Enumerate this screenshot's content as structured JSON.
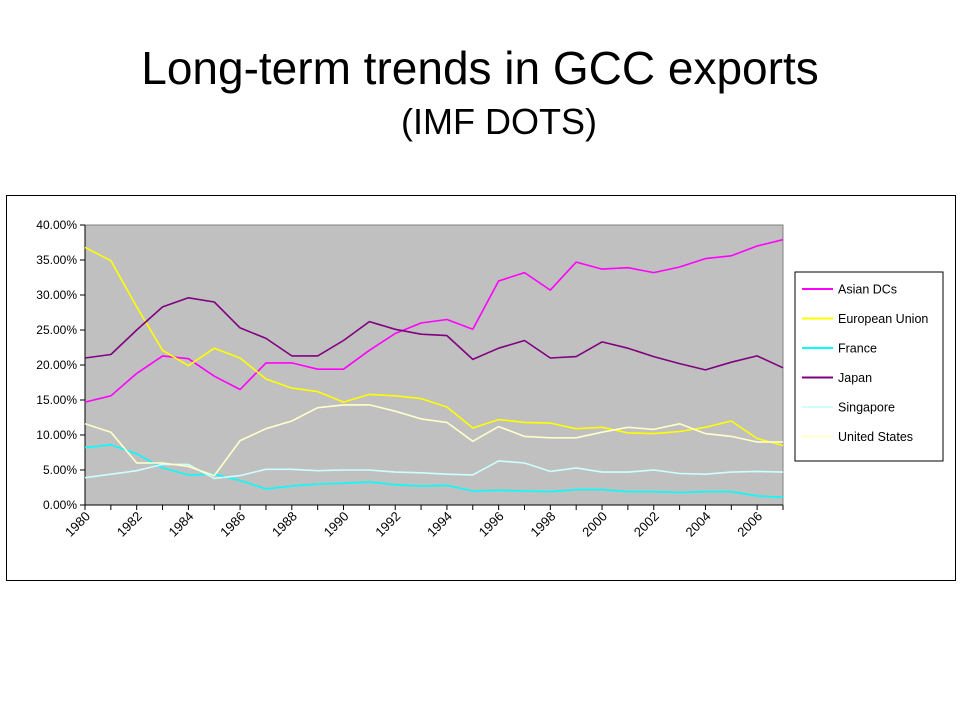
{
  "slide": {
    "title": "Long-term trends in GCC exports",
    "subtitle": "(IMF DOTS)"
  },
  "chart_data": {
    "type": "line",
    "x": [
      1980,
      1981,
      1982,
      1983,
      1984,
      1985,
      1986,
      1987,
      1988,
      1989,
      1990,
      1991,
      1992,
      1993,
      1994,
      1995,
      1996,
      1997,
      1998,
      1999,
      2000,
      2001,
      2002,
      2003,
      2004,
      2005,
      2006,
      2007
    ],
    "x_tick_labels": [
      "1980",
      "1982",
      "1984",
      "1986",
      "1988",
      "1990",
      "1992",
      "1994",
      "1996",
      "1998",
      "2000",
      "2002",
      "2004",
      "2006"
    ],
    "y_tick_labels": [
      "0.00%",
      "5.00%",
      "10.00%",
      "15.00%",
      "20.00%",
      "25.00%",
      "30.00%",
      "35.00%",
      "40.00%"
    ],
    "ylim": [
      0,
      40
    ],
    "ylabel": "",
    "xlabel": "",
    "grid": false,
    "plot_background": "#c0c0c0",
    "legend_position": "right",
    "series": [
      {
        "name": "Asian DCs",
        "color": "#ff00ff",
        "values": [
          14.7,
          15.6,
          18.8,
          21.3,
          20.9,
          18.4,
          16.5,
          20.3,
          20.3,
          19.4,
          19.4,
          22.1,
          24.5,
          26.0,
          26.5,
          25.1,
          32.0,
          33.2,
          30.7,
          34.7,
          33.7,
          33.9,
          33.2,
          34.0,
          35.2,
          35.6,
          37.0,
          37.9
        ]
      },
      {
        "name": "European Union",
        "color": "#ffff00",
        "values": [
          36.8,
          34.9,
          28.3,
          22.1,
          19.9,
          22.4,
          21.0,
          18.0,
          16.7,
          16.2,
          14.7,
          15.8,
          15.6,
          15.2,
          14.0,
          11.0,
          12.2,
          11.8,
          11.7,
          10.9,
          11.1,
          10.3,
          10.2,
          10.5,
          11.1,
          12.0,
          9.5,
          8.5
        ]
      },
      {
        "name": "France",
        "color": "#00ffff",
        "values": [
          8.2,
          8.6,
          7.3,
          5.3,
          4.3,
          4.4,
          3.5,
          2.3,
          2.7,
          3.0,
          3.1,
          3.3,
          2.9,
          2.7,
          2.8,
          2.0,
          2.1,
          2.0,
          1.9,
          2.2,
          2.2,
          1.9,
          1.9,
          1.8,
          1.9,
          1.9,
          1.3,
          1.1
        ]
      },
      {
        "name": "Japan",
        "color": "#800080",
        "values": [
          21.0,
          21.5,
          25.0,
          28.3,
          29.6,
          29.0,
          25.3,
          23.8,
          21.3,
          21.3,
          23.5,
          26.2,
          25.1,
          24.4,
          24.2,
          20.8,
          22.4,
          23.5,
          21.0,
          21.2,
          23.3,
          22.4,
          21.2,
          20.2,
          19.3,
          20.4,
          21.3,
          19.6
        ]
      },
      {
        "name": "Singapore",
        "color": "#ccffff",
        "values": [
          3.9,
          4.4,
          4.9,
          5.8,
          5.8,
          3.8,
          4.2,
          5.1,
          5.1,
          4.9,
          5.0,
          5.0,
          4.7,
          4.6,
          4.4,
          4.3,
          6.3,
          6.0,
          4.8,
          5.3,
          4.7,
          4.7,
          5.0,
          4.5,
          4.4,
          4.7,
          4.8,
          4.7
        ]
      },
      {
        "name": "United States",
        "color": "#ffffcc",
        "values": [
          11.6,
          10.4,
          6.0,
          6.0,
          5.5,
          4.2,
          9.2,
          10.9,
          12.0,
          13.9,
          14.3,
          14.3,
          13.4,
          12.3,
          11.8,
          9.1,
          11.2,
          9.8,
          9.6,
          9.6,
          10.4,
          11.1,
          10.8,
          11.6,
          10.2,
          9.8,
          9.0,
          9.0
        ]
      }
    ]
  }
}
